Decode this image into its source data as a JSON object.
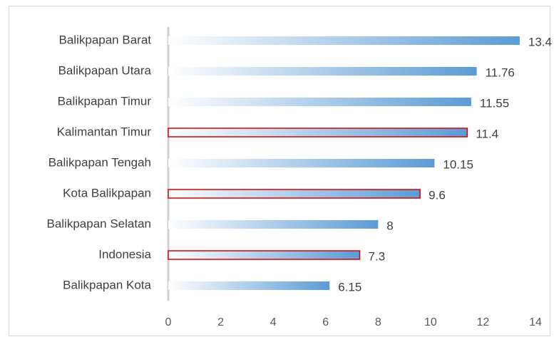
{
  "chart_data": {
    "type": "bar",
    "orientation": "horizontal",
    "categories": [
      "Balikpapan Barat",
      "Balikpapan Utara",
      "Balikpapan Timur",
      "Kalimantan Timur",
      "Balikpapan Tengah",
      "Kota Balikpapan",
      "Balikpapan Selatan",
      "Indonesia",
      "Balikpapan Kota"
    ],
    "values": [
      13.4,
      11.76,
      11.55,
      11.4,
      10.15,
      9.6,
      8,
      7.3,
      6.15
    ],
    "color": "#5b9bd5",
    "outline": [
      null,
      null,
      null,
      "#e00000",
      null,
      "#e00000",
      null,
      "#e00000",
      null
    ],
    "xlim": [
      0,
      14
    ],
    "xticks": [
      0,
      2,
      4,
      6,
      8,
      10,
      12,
      14
    ],
    "grid": false
  }
}
